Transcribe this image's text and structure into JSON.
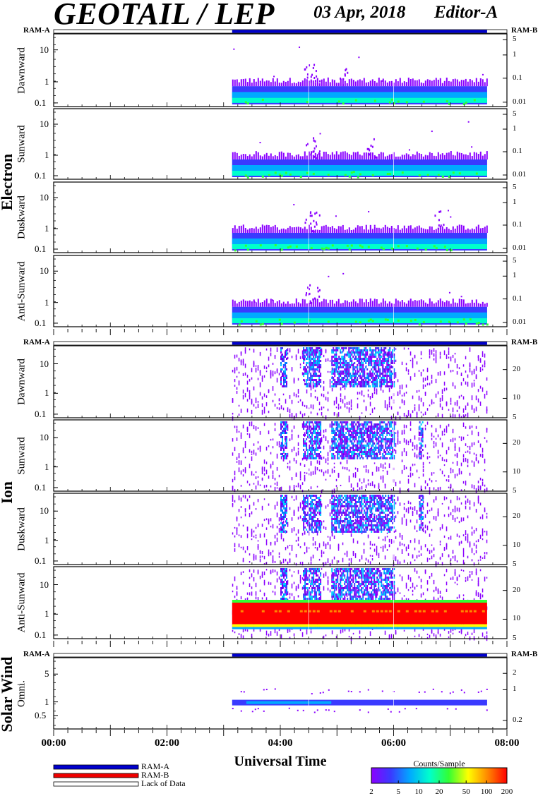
{
  "header": {
    "title": "GEOTAIL / LEP",
    "date": "03 Apr, 2018",
    "editor": "Editor-A"
  },
  "groups": [
    {
      "label": "Electron",
      "ram_a": "RAM-A",
      "ram_b": "RAM-B",
      "panels": [
        {
          "label": "Dawnward",
          "left_ticks": [
            "10",
            "1",
            "0.1"
          ],
          "right_ticks": [
            "5",
            "1",
            "0.1",
            "0.01"
          ]
        },
        {
          "label": "Sunward",
          "left_ticks": [
            "10",
            "1",
            "0.1"
          ],
          "right_ticks": [
            "5",
            "1",
            "0.1",
            "0.01"
          ]
        },
        {
          "label": "Duskward",
          "left_ticks": [
            "10",
            "1",
            "0.1"
          ],
          "right_ticks": [
            "5",
            "1",
            "0.1",
            "0.01"
          ]
        },
        {
          "label": "Anti-Sunward",
          "left_ticks": [
            "10",
            "1",
            "0.1"
          ],
          "right_ticks": [
            "5",
            "1",
            "0.1",
            "0.01"
          ]
        }
      ]
    },
    {
      "label": "Ion",
      "ram_a": "RAM-A",
      "ram_b": "RAM-B",
      "panels": [
        {
          "label": "Dawnward",
          "left_ticks": [
            "10",
            "1",
            "0.1"
          ],
          "right_ticks": [
            "20",
            "10",
            "5"
          ]
        },
        {
          "label": "Sunward",
          "left_ticks": [
            "10",
            "1",
            "0.1"
          ],
          "right_ticks": [
            "20",
            "10",
            "5"
          ]
        },
        {
          "label": "Duskward",
          "left_ticks": [
            "10",
            "1",
            "0.1"
          ],
          "right_ticks": [
            "20",
            "10",
            "5"
          ]
        },
        {
          "label": "Anti-Sunward",
          "left_ticks": [
            "10",
            "1",
            "0.1"
          ],
          "right_ticks": [
            "20",
            "10",
            "5"
          ]
        }
      ]
    },
    {
      "label": "Solar Wind",
      "ram_a": "RAM-A",
      "ram_b": "RAM-B",
      "panels": [
        {
          "label": "Omni.",
          "left_ticks": [
            "5",
            "1",
            "0.5"
          ],
          "right_ticks": [
            "2",
            "1",
            "0.2"
          ]
        }
      ]
    }
  ],
  "chart_data": {
    "type": "heatmap",
    "xlabel": "Universal Time",
    "x_ticks": [
      "00:00",
      "02:00",
      "04:00",
      "06:00",
      "08:00"
    ],
    "x_range_hours": [
      0,
      8
    ],
    "data_coverage_hours": [
      3.15,
      7.65
    ],
    "ram_a_coverage_hours": [
      3.15,
      7.65
    ],
    "colorbar": {
      "title": "Counts/Sample",
      "ticks": [
        "2",
        "5",
        "10",
        "20",
        "50",
        "100",
        "200"
      ],
      "colors": [
        "#8a00ff",
        "#3a3aff",
        "#00aaff",
        "#00ffcc",
        "#33ff33",
        "#ffff00",
        "#ff8800",
        "#ff0000"
      ]
    },
    "legend": [
      {
        "label": "RAM-A",
        "color": "#0000cc"
      },
      {
        "label": "RAM-B",
        "color": "#ee0000"
      },
      {
        "label": "Lack of Data",
        "color": "#ffffff"
      }
    ],
    "electron_bands": [
      {
        "panel": "Dawnward",
        "peaks_hours": [
          4.5,
          4.6,
          5.1
        ]
      },
      {
        "panel": "Sunward",
        "peaks_hours": [
          4.5,
          4.6,
          5.6
        ]
      },
      {
        "panel": "Duskward",
        "peaks_hours": [
          4.5,
          4.6,
          6.8
        ]
      },
      {
        "panel": "Anti-Sunward",
        "peaks_hours": [
          4.5,
          4.6
        ]
      }
    ],
    "ion_blobs": [
      {
        "panel": "Dawnward",
        "intervals_hours": [
          [
            4.0,
            4.1
          ],
          [
            4.4,
            4.7
          ],
          [
            4.9,
            6.0
          ]
        ]
      },
      {
        "panel": "Sunward",
        "intervals_hours": [
          [
            4.0,
            4.1
          ],
          [
            4.4,
            4.7
          ],
          [
            4.9,
            6.0
          ],
          [
            6.45,
            6.5
          ]
        ]
      },
      {
        "panel": "Duskward",
        "intervals_hours": [
          [
            4.0,
            4.1
          ],
          [
            4.4,
            4.7
          ],
          [
            4.9,
            6.0
          ],
          [
            6.45,
            6.5
          ]
        ]
      },
      {
        "panel": "Anti-Sunward",
        "intervals_hours": [
          [
            4.0,
            4.1
          ],
          [
            4.4,
            4.7
          ],
          [
            4.9,
            6.0
          ]
        ]
      }
    ],
    "ion_antisunward_core_band": {
      "hours": [
        3.15,
        7.65
      ],
      "color": "red"
    },
    "solarwind_band_hours": [
      3.15,
      7.65
    ]
  }
}
